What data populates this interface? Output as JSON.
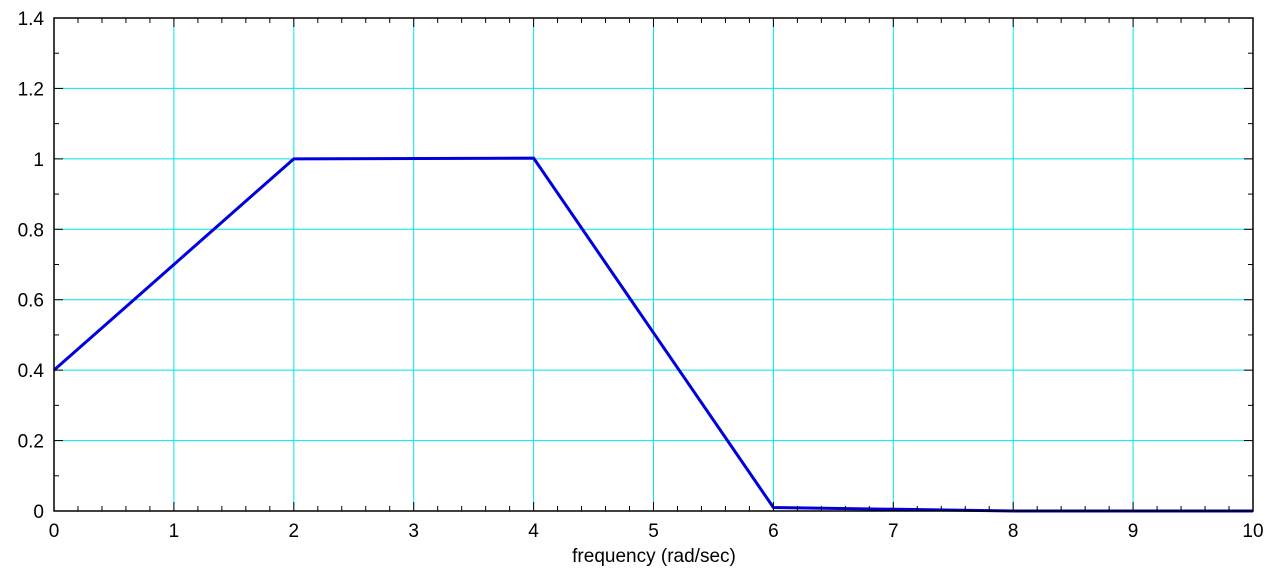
{
  "chart_data": {
    "type": "line",
    "title": "",
    "xlabel": "frequency (rad/sec)",
    "ylabel": "",
    "xlim": [
      0,
      10
    ],
    "ylim": [
      0,
      1.4
    ],
    "xticks": [
      0,
      1,
      2,
      3,
      4,
      5,
      6,
      7,
      8,
      9,
      10
    ],
    "yticks": [
      0,
      0.2,
      0.4,
      0.6,
      0.8,
      1,
      1.2,
      1.4
    ],
    "grid": true,
    "series": [
      {
        "x": [
          0,
          2,
          4,
          6,
          8,
          10
        ],
        "y": [
          0.4,
          1.0,
          1.002,
          0.01,
          0.0,
          0.0
        ]
      }
    ],
    "colors": {
      "line": "#0000dd",
      "grid": "#00e5ee",
      "axes": "#000000"
    }
  }
}
